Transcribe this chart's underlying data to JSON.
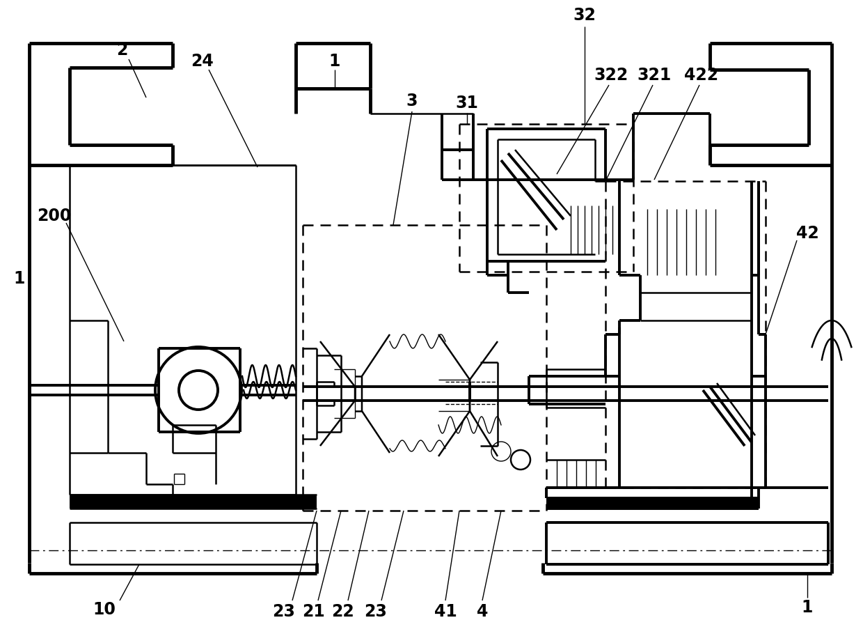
{
  "bg_color": "#ffffff",
  "figsize": [
    12.4,
    9.23
  ],
  "dpi": 100,
  "font_size": 17,
  "lw_thin": 1.0,
  "lw_med": 1.8,
  "lw_thick": 2.8,
  "lw_bold": 3.5
}
